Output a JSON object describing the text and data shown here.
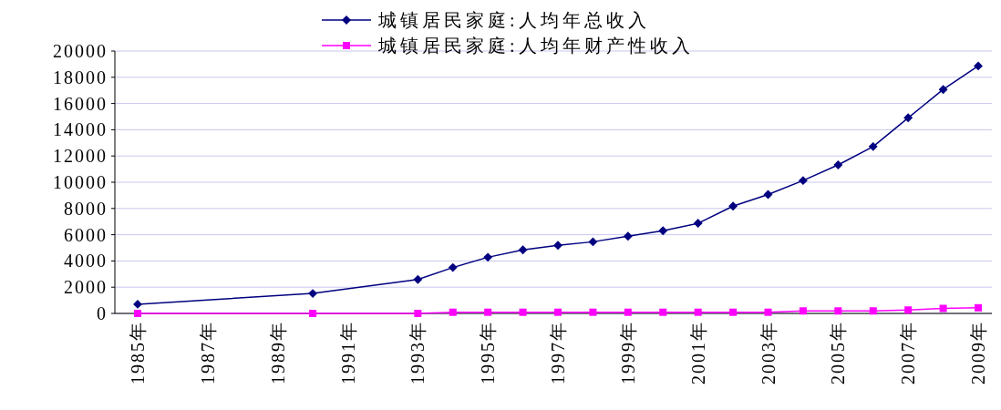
{
  "chart_data": {
    "type": "line",
    "categories": [
      "1985年",
      null,
      "1987年",
      null,
      "1989年",
      null,
      "1991年",
      null,
      "1993年",
      null,
      "1995年",
      null,
      "1997年",
      null,
      "1999年",
      null,
      "2001年",
      null,
      "2003年",
      null,
      "2005年",
      null,
      "2007年",
      null,
      "2009年"
    ],
    "series": [
      {
        "name": "城镇居民家庭:人均年总收入",
        "color": "#000080",
        "marker": "diamond",
        "values": [
          700,
          null,
          null,
          null,
          null,
          1520,
          null,
          null,
          2590,
          3500,
          4280,
          4840,
          5190,
          5460,
          5890,
          6300,
          6870,
          8180,
          9060,
          10130,
          11320,
          12720,
          14910,
          17070,
          18860
        ]
      },
      {
        "name": "城镇居民家庭:人均年财产性收入",
        "color": "#ff00ff",
        "marker": "square",
        "values": [
          0,
          null,
          null,
          null,
          null,
          0,
          null,
          null,
          0,
          90,
          90,
          90,
          90,
          90,
          90,
          90,
          90,
          90,
          90,
          190,
          190,
          190,
          260,
          380,
          430
        ]
      }
    ],
    "ylim": [
      0,
      20000
    ],
    "yticks": [
      0,
      2000,
      4000,
      6000,
      8000,
      10000,
      12000,
      14000,
      16000,
      18000,
      20000
    ],
    "grid": "y",
    "legend": "top"
  }
}
